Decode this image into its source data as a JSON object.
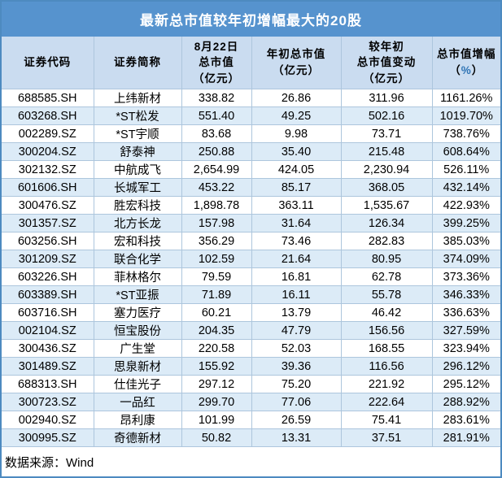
{
  "title": "最新总市值较年初增幅最大的20股",
  "footer": {
    "source": "数据来源：Wind"
  },
  "colors": {
    "title_bg": "#5693ce",
    "header_bg": "#cadcf0",
    "stripe_bg": "#dcebf7",
    "outer_border": "#4d8ac0",
    "grid_line": "#adc6dd",
    "percent_accent": "#2e74b5"
  },
  "chart_data": {
    "type": "table",
    "title": "最新总市值较年初增幅最大的20股",
    "source": "Wind",
    "columns": [
      "证券代码",
      "证券简称",
      "8月22日总市值（亿元）",
      "年初总市值（亿元）",
      "较年初总市值变动（亿元）",
      "总市值增幅（%）"
    ],
    "rows": [
      [
        "688585.SH",
        "上纬新材",
        338.82,
        26.86,
        311.96,
        "1161.26%"
      ],
      [
        "603268.SH",
        "*ST松发",
        551.4,
        49.25,
        502.16,
        "1019.70%"
      ],
      [
        "002289.SZ",
        "*ST宇顺",
        83.68,
        9.98,
        73.71,
        "738.76%"
      ],
      [
        "300204.SZ",
        "舒泰神",
        250.88,
        35.4,
        215.48,
        "608.64%"
      ],
      [
        "302132.SZ",
        "中航成飞",
        2654.99,
        424.05,
        2230.94,
        "526.11%"
      ],
      [
        "601606.SH",
        "长城军工",
        453.22,
        85.17,
        368.05,
        "432.14%"
      ],
      [
        "300476.SZ",
        "胜宏科技",
        1898.78,
        363.11,
        1535.67,
        "422.93%"
      ],
      [
        "301357.SZ",
        "北方长龙",
        157.98,
        31.64,
        126.34,
        "399.25%"
      ],
      [
        "603256.SH",
        "宏和科技",
        356.29,
        73.46,
        282.83,
        "385.03%"
      ],
      [
        "301209.SZ",
        "联合化学",
        102.59,
        21.64,
        80.95,
        "374.09%"
      ],
      [
        "603226.SH",
        "菲林格尔",
        79.59,
        16.81,
        62.78,
        "373.36%"
      ],
      [
        "603389.SH",
        "*ST亚振",
        71.89,
        16.11,
        55.78,
        "346.33%"
      ],
      [
        "603716.SH",
        "塞力医疗",
        60.21,
        13.79,
        46.42,
        "336.63%"
      ],
      [
        "002104.SZ",
        "恒宝股份",
        204.35,
        47.79,
        156.56,
        "327.59%"
      ],
      [
        "300436.SZ",
        "广生堂",
        220.58,
        52.03,
        168.55,
        "323.94%"
      ],
      [
        "301489.SZ",
        "思泉新材",
        155.92,
        39.36,
        116.56,
        "296.12%"
      ],
      [
        "688313.SH",
        "仕佳光子",
        297.12,
        75.2,
        221.92,
        "295.12%"
      ],
      [
        "300723.SZ",
        "一品红",
        299.7,
        77.06,
        222.64,
        "288.92%"
      ],
      [
        "002940.SZ",
        "昂利康",
        101.99,
        26.59,
        75.41,
        "283.61%"
      ],
      [
        "300995.SZ",
        "奇德新材",
        50.82,
        13.31,
        37.51,
        "281.91%"
      ]
    ]
  },
  "table": {
    "columns": [
      {
        "id": "code",
        "lines": [
          "证券代码"
        ]
      },
      {
        "id": "name",
        "lines": [
          "证券简称"
        ]
      },
      {
        "id": "aug22_mcap",
        "lines": [
          "8月22日",
          "总市值",
          "（亿元）"
        ]
      },
      {
        "id": "year_start_mcap",
        "lines": [
          "年初总市值",
          "（亿元）"
        ]
      },
      {
        "id": "mcap_change",
        "lines": [
          "较年初",
          "总市值变动",
          "（亿元）"
        ]
      },
      {
        "id": "mcap_growth_pct",
        "lines": [
          "总市值增幅",
          "（%）"
        ]
      }
    ],
    "rows": [
      [
        "688585.SH",
        "上纬新材",
        "338.82",
        "26.86",
        "311.96",
        "1161.26%"
      ],
      [
        "603268.SH",
        "*ST松发",
        "551.40",
        "49.25",
        "502.16",
        "1019.70%"
      ],
      [
        "002289.SZ",
        "*ST宇顺",
        "83.68",
        "9.98",
        "73.71",
        "738.76%"
      ],
      [
        "300204.SZ",
        "舒泰神",
        "250.88",
        "35.40",
        "215.48",
        "608.64%"
      ],
      [
        "302132.SZ",
        "中航成飞",
        "2,654.99",
        "424.05",
        "2,230.94",
        "526.11%"
      ],
      [
        "601606.SH",
        "长城军工",
        "453.22",
        "85.17",
        "368.05",
        "432.14%"
      ],
      [
        "300476.SZ",
        "胜宏科技",
        "1,898.78",
        "363.11",
        "1,535.67",
        "422.93%"
      ],
      [
        "301357.SZ",
        "北方长龙",
        "157.98",
        "31.64",
        "126.34",
        "399.25%"
      ],
      [
        "603256.SH",
        "宏和科技",
        "356.29",
        "73.46",
        "282.83",
        "385.03%"
      ],
      [
        "301209.SZ",
        "联合化学",
        "102.59",
        "21.64",
        "80.95",
        "374.09%"
      ],
      [
        "603226.SH",
        "菲林格尔",
        "79.59",
        "16.81",
        "62.78",
        "373.36%"
      ],
      [
        "603389.SH",
        "*ST亚振",
        "71.89",
        "16.11",
        "55.78",
        "346.33%"
      ],
      [
        "603716.SH",
        "塞力医疗",
        "60.21",
        "13.79",
        "46.42",
        "336.63%"
      ],
      [
        "002104.SZ",
        "恒宝股份",
        "204.35",
        "47.79",
        "156.56",
        "327.59%"
      ],
      [
        "300436.SZ",
        "广生堂",
        "220.58",
        "52.03",
        "168.55",
        "323.94%"
      ],
      [
        "301489.SZ",
        "思泉新材",
        "155.92",
        "39.36",
        "116.56",
        "296.12%"
      ],
      [
        "688313.SH",
        "仕佳光子",
        "297.12",
        "75.20",
        "221.92",
        "295.12%"
      ],
      [
        "300723.SZ",
        "一品红",
        "299.70",
        "77.06",
        "222.64",
        "288.92%"
      ],
      [
        "002940.SZ",
        "昂利康",
        "101.99",
        "26.59",
        "75.41",
        "283.61%"
      ],
      [
        "300995.SZ",
        "奇德新材",
        "50.82",
        "13.31",
        "37.51",
        "281.91%"
      ]
    ]
  }
}
